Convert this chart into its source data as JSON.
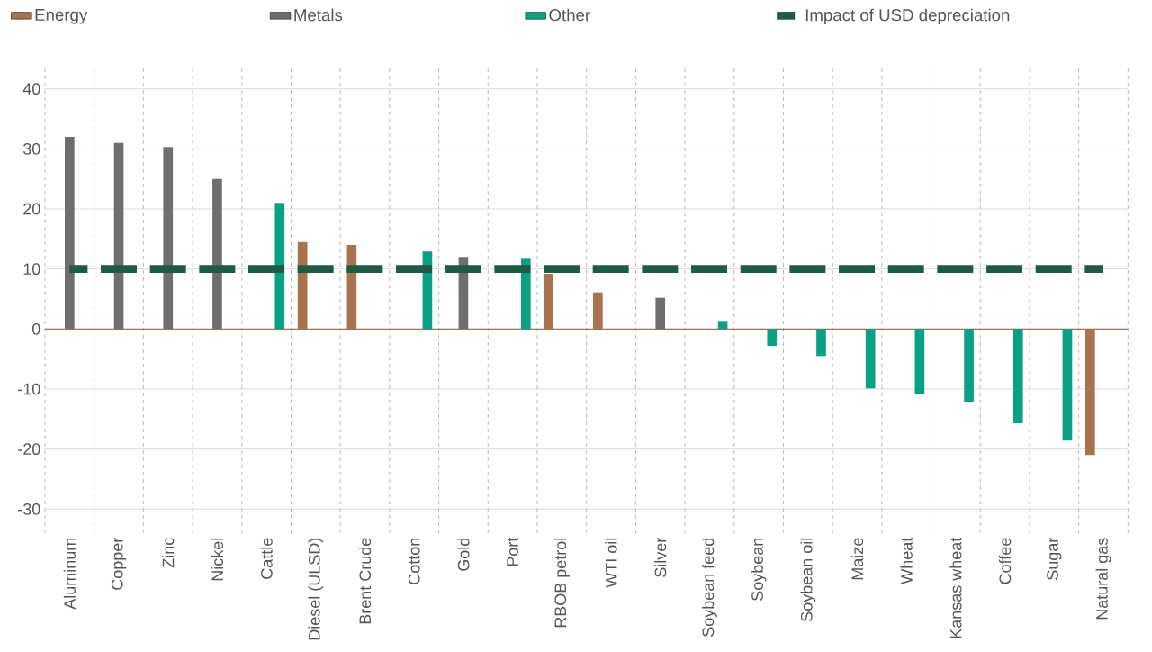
{
  "chart_data": {
    "type": "bar",
    "categories": [
      "Aluminum",
      "Copper",
      "Zinc",
      "Nickel",
      "Cattle",
      "Diesel (ULSD)",
      "Brent Crude",
      "Cotton",
      "Gold",
      "Port",
      "RBOB petrol",
      "WTI oil",
      "Silver",
      "Soybean feed",
      "Soybean",
      "Soybean oil",
      "Maize",
      "Wheat",
      "Kansas wheat",
      "Coffee",
      "Sugar",
      "Natural gas"
    ],
    "series": [
      {
        "name": "Energy",
        "color": "#a8734d",
        "values": [
          null,
          null,
          null,
          null,
          null,
          14.5,
          14,
          null,
          null,
          null,
          9.2,
          6.1,
          null,
          null,
          null,
          null,
          null,
          null,
          null,
          null,
          null,
          -21
        ]
      },
      {
        "name": "Metals",
        "color": "#6e6e6e",
        "values": [
          32,
          31,
          30.3,
          25,
          null,
          null,
          null,
          null,
          12,
          null,
          null,
          null,
          5.2,
          null,
          null,
          null,
          null,
          null,
          null,
          null,
          null,
          null
        ]
      },
      {
        "name": "Other",
        "color": "#0aa085",
        "values": [
          null,
          null,
          null,
          null,
          21,
          null,
          null,
          12.9,
          null,
          11.7,
          null,
          null,
          null,
          1.2,
          -2.8,
          -4.5,
          -9.9,
          -10.9,
          -12.1,
          -15.7,
          -18.6,
          null
        ]
      },
      {
        "name": "Impact of USD depreciation",
        "type": "line",
        "line_style": "dashed",
        "color": "#1e5a44",
        "values": [
          10,
          10,
          10,
          10,
          10,
          10,
          10,
          10,
          10,
          10,
          10,
          10,
          10,
          10,
          10,
          10,
          10,
          10,
          10,
          10,
          10,
          10
        ]
      }
    ],
    "ylim": [
      -34,
      44
    ],
    "yticks": [
      -30,
      -20,
      -10,
      0,
      10,
      20,
      30,
      40
    ],
    "ref_lines": [
      {
        "axis": "y",
        "value": 0,
        "color": "#a8734d"
      }
    ],
    "grid": true,
    "legend": "top"
  }
}
